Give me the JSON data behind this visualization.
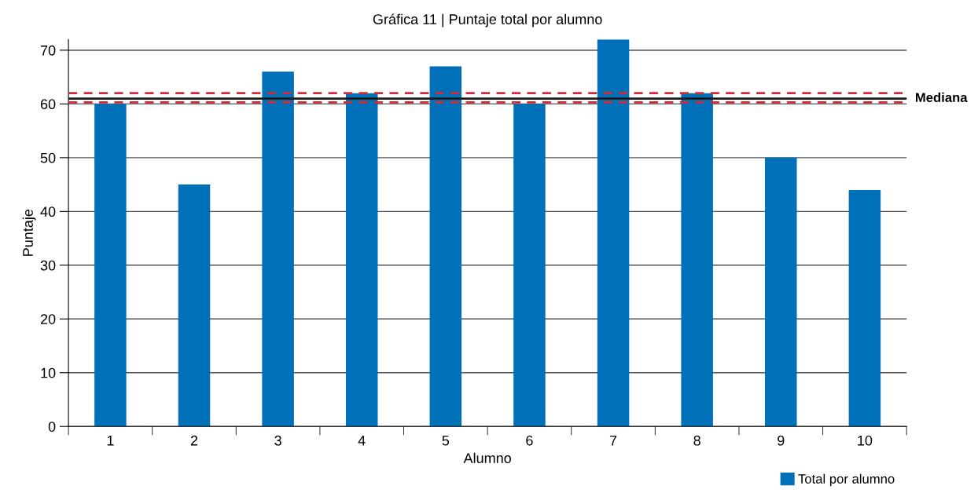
{
  "chart_data": {
    "type": "bar",
    "title": "Gráfica 11 | Puntaje total por alumno",
    "xlabel": "Alumno",
    "ylabel": "Puntaje",
    "categories": [
      "1",
      "2",
      "3",
      "4",
      "5",
      "6",
      "7",
      "8",
      "9",
      "10"
    ],
    "series": [
      {
        "name": "Total por alumno",
        "color": "#0070b8",
        "values": [
          60,
          45,
          66,
          62,
          67,
          60,
          72,
          62,
          50,
          44
        ]
      }
    ],
    "ylim": [
      0,
      72
    ],
    "yticks": [
      0,
      10,
      20,
      30,
      40,
      50,
      60,
      70
    ],
    "grid": "y",
    "legend": "bottom right",
    "ref_lines": [
      {
        "axis": "y",
        "value": 61,
        "label": "Mediana",
        "color": "#1a1a1a",
        "line_style": "solid"
      },
      {
        "axis": "y",
        "value": 62,
        "label": null,
        "color": "#d42a35",
        "line_style": "dashed"
      },
      {
        "axis": "y",
        "value": 60.3,
        "label": null,
        "color": "#d42a35",
        "line_style": "dashed"
      }
    ]
  }
}
